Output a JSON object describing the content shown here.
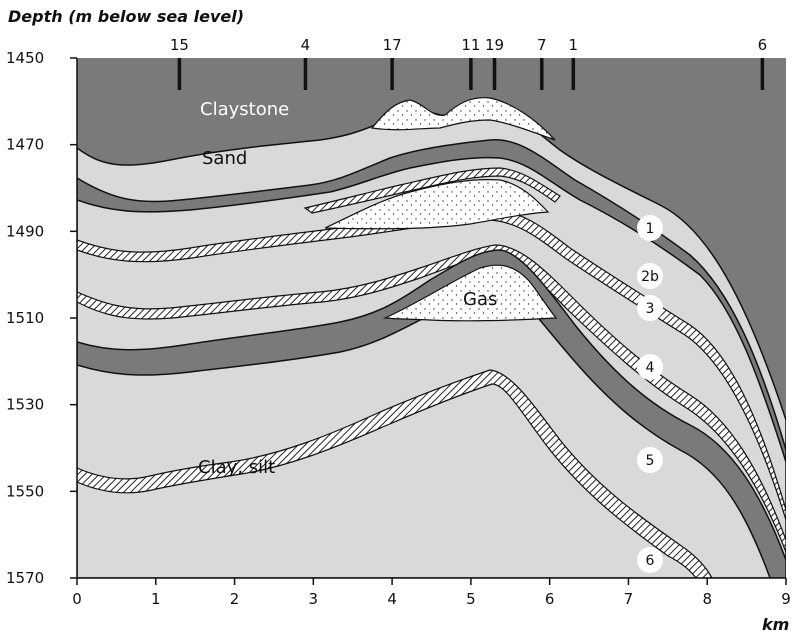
{
  "title": "Depth (m below sea level)",
  "x_unit": "km",
  "y_ticks": [
    "1450",
    "1470",
    "1490",
    "1510",
    "1530",
    "1550",
    "1570"
  ],
  "x_ticks": [
    "0",
    "1",
    "2",
    "3",
    "4",
    "5",
    "6",
    "7",
    "8",
    "9"
  ],
  "wells": [
    {
      "label": "15",
      "x_km": 1.3
    },
    {
      "label": "4",
      "x_km": 2.9
    },
    {
      "label": "17",
      "x_km": 4.0
    },
    {
      "label": "11",
      "x_km": 5.0
    },
    {
      "label": "19",
      "x_km": 5.3
    },
    {
      "label": "7",
      "x_km": 5.9
    },
    {
      "label": "1",
      "x_km": 6.3
    },
    {
      "label": "6",
      "x_km": 8.7
    }
  ],
  "labels": {
    "claystone": "Claystone",
    "sand": "Sand",
    "gas": "Gas",
    "clay_silt": "Clay, silt"
  },
  "layer_markers": [
    "1",
    "2b",
    "3",
    "4",
    "5",
    "6"
  ],
  "colors": {
    "claystone": "#7a7a7a",
    "light": "#d9d9d9",
    "dark_band": "#7a7a7a",
    "gas": "#ffffff"
  }
}
